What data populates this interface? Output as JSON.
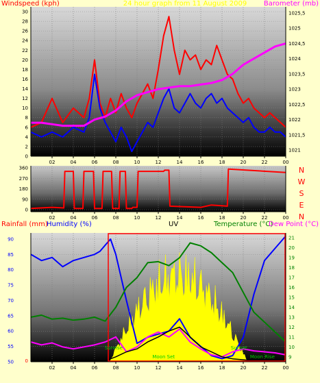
{
  "chart_data": [
    {
      "type": "line",
      "title": "24 hour graph from 11 August 2009",
      "left_label": "Windspeed (kph)",
      "right_label": "Barometer (mb)",
      "x_ticks": [
        "02",
        "04",
        "06",
        "08",
        "10",
        "12",
        "14",
        "16",
        "18",
        "20",
        "22",
        "00"
      ],
      "ylim_left": [
        0,
        31
      ],
      "y_ticks_left": [
        0,
        2,
        4,
        6,
        8,
        10,
        12,
        14,
        16,
        18,
        20,
        22,
        24,
        26,
        28,
        30
      ],
      "ylim_right": [
        1020.8,
        1025.7
      ],
      "y_ticks_right": [
        "1021",
        "1021,5",
        "1022",
        "1022,5",
        "1023",
        "1023,5",
        "1024",
        "1024,5",
        "1025",
        "1025,5"
      ],
      "series": [
        {
          "color": "#ff0000",
          "axis": "left",
          "x": [
            0,
            1,
            2,
            3,
            4,
            5,
            5.5,
            6,
            6.5,
            7,
            7.5,
            8,
            8.5,
            9,
            9.5,
            10,
            10.5,
            11,
            11.5,
            12,
            12.5,
            13,
            13.5,
            14,
            14.5,
            15,
            15.5,
            16,
            16.5,
            17,
            17.5,
            18,
            18.5,
            19,
            19.5,
            20,
            20.5,
            21,
            21.5,
            22,
            22.5,
            23,
            23.5,
            24
          ],
          "values": [
            6,
            7,
            12,
            7,
            10,
            8,
            12,
            20,
            11,
            8,
            12,
            9,
            13,
            10,
            8,
            11,
            13,
            15,
            12,
            18,
            25,
            29,
            22,
            17,
            22,
            20,
            21,
            18,
            20,
            19,
            23,
            20,
            17,
            16,
            13,
            11,
            12,
            10,
            9,
            8,
            9,
            8,
            7,
            6
          ]
        },
        {
          "color": "#0000ff",
          "axis": "left",
          "x": [
            0,
            1,
            2,
            3,
            4,
            5,
            5.5,
            6,
            6.5,
            7,
            7.5,
            8,
            8.5,
            9,
            9.5,
            10,
            10.5,
            11,
            11.5,
            12,
            12.5,
            13,
            13.5,
            14,
            14.5,
            15,
            15.5,
            16,
            16.5,
            17,
            17.5,
            18,
            18.5,
            19,
            19.5,
            20,
            20.5,
            21,
            21.5,
            22,
            22.5,
            23,
            23.5,
            24
          ],
          "values": [
            5,
            4,
            5,
            4,
            6,
            5,
            8,
            17,
            10,
            7,
            5,
            3,
            6,
            4,
            1,
            3,
            5,
            7,
            6,
            9,
            12,
            14,
            10,
            9,
            11,
            13,
            11,
            10,
            12,
            13,
            11,
            12,
            10,
            9,
            8,
            7,
            8,
            6,
            5,
            5,
            6,
            5,
            5,
            4
          ]
        },
        {
          "color": "#ff00ff",
          "axis": "right",
          "x": [
            0,
            1,
            2,
            3,
            4,
            5,
            6,
            7,
            8,
            9,
            10,
            11,
            12,
            13,
            14,
            15,
            16,
            17,
            18,
            19,
            20,
            21,
            22,
            23,
            24
          ],
          "values": [
            1021.9,
            1021.9,
            1021.85,
            1021.8,
            1021.8,
            1021.8,
            1022.0,
            1022.1,
            1022.3,
            1022.6,
            1022.8,
            1022.9,
            1023.0,
            1023.05,
            1023.1,
            1023.1,
            1023.15,
            1023.2,
            1023.3,
            1023.5,
            1023.8,
            1024.0,
            1024.2,
            1024.4,
            1024.5
          ]
        }
      ]
    },
    {
      "type": "line",
      "right_labels": [
        "N",
        "W",
        "S",
        "E",
        "N"
      ],
      "ylim": [
        0,
        360
      ],
      "y_ticks": [
        0,
        90,
        180,
        270,
        360
      ],
      "x_ticks": [
        "02",
        "04",
        "06",
        "08",
        "10",
        "12",
        "14",
        "16",
        "18",
        "20",
        "22",
        "00"
      ],
      "series": [
        {
          "color": "#ff0000",
          "x": [
            0,
            2,
            3.1,
            3.2,
            4,
            4.1,
            4.9,
            5.0,
            5.9,
            6.0,
            6.7,
            6.8,
            7.6,
            7.7,
            8.3,
            8.4,
            8.9,
            9.0,
            9.5,
            9.6,
            10.0,
            10.1,
            12.5,
            12.6,
            13.0,
            13.1,
            16.0,
            17.0,
            18.5,
            18.6,
            24
          ],
          "values": [
            10,
            20,
            15,
            330,
            330,
            10,
            10,
            330,
            330,
            10,
            10,
            330,
            330,
            10,
            10,
            330,
            330,
            10,
            10,
            20,
            20,
            330,
            330,
            340,
            340,
            30,
            20,
            40,
            30,
            350,
            320
          ]
        }
      ]
    },
    {
      "type": "line",
      "labels": {
        "rainfall": "Rainfall (mm)",
        "humidity": "Humidity (%)",
        "uv": "UV",
        "temperature": "Temperature (°C)",
        "dew_point": "Dew Point (°C)"
      },
      "annotations": [
        "Sunrise",
        "Moon Set",
        "Sunset",
        "Moon Rise"
      ],
      "ylim_left": [
        50,
        92
      ],
      "y_ticks_left": [
        50,
        55,
        60,
        65,
        70,
        75,
        80,
        85,
        90
      ],
      "y_ticks_left_rain": [
        0
      ],
      "ylim_right": [
        8.5,
        21.5
      ],
      "y_ticks_right": [
        9,
        10,
        11,
        12,
        13,
        14,
        15,
        16,
        17,
        18,
        19,
        20,
        21
      ],
      "x_ticks": [
        "02",
        "04",
        "06",
        "08",
        "10",
        "12",
        "14",
        "16",
        "18",
        "20",
        "22",
        "00"
      ],
      "series": [
        {
          "name": "Humidity (%)",
          "color": "#0000ff",
          "axis": "left",
          "x": [
            0,
            1,
            2,
            3,
            4,
            5,
            6,
            6.5,
            7,
            7.5,
            8,
            9,
            10,
            11,
            12,
            13,
            14,
            15,
            16,
            17,
            18,
            19,
            20,
            21,
            22,
            23,
            24
          ],
          "values": [
            85,
            83,
            84,
            81,
            83,
            84,
            85,
            86,
            88,
            90,
            85,
            70,
            56,
            58,
            59,
            60,
            64,
            58,
            55,
            52,
            51,
            52,
            58,
            72,
            83,
            87,
            91
          ]
        },
        {
          "name": "Temperature (°C)",
          "color": "#008000",
          "axis": "right",
          "x": [
            0,
            1,
            2,
            3,
            4,
            5,
            6,
            7,
            8,
            9,
            10,
            11,
            12,
            13,
            14,
            15,
            16,
            17,
            18,
            19,
            20,
            21,
            22,
            23,
            24
          ],
          "values": [
            13,
            13.2,
            12.8,
            12.9,
            12.7,
            12.8,
            13,
            12.6,
            14,
            16,
            17,
            18.5,
            18.6,
            18.2,
            19,
            20.5,
            20.2,
            19.5,
            18.5,
            17.5,
            15.5,
            13.5,
            12.5,
            11.5,
            10.5
          ]
        },
        {
          "name": "Dew Point (°C)",
          "color": "#ff00ff",
          "axis": "right",
          "x": [
            0,
            1,
            2,
            3,
            4,
            5,
            6,
            7,
            8,
            9,
            10,
            11,
            12,
            13,
            14,
            15,
            16,
            17,
            18,
            19,
            20,
            21,
            22,
            23,
            24
          ],
          "values": [
            10.5,
            10.2,
            10.4,
            10,
            9.8,
            10,
            10.2,
            10.5,
            11,
            9.5,
            10,
            11,
            11.5,
            11,
            11.8,
            10.5,
            9.8,
            9.2,
            9.0,
            9.5,
            9.8,
            9.6,
            9.5,
            9.4,
            9.2
          ]
        },
        {
          "name": "UV",
          "color": "#000000",
          "axis": "right",
          "x": [
            0,
            7,
            8,
            9,
            10,
            11,
            12,
            13,
            14,
            15,
            16,
            17,
            18,
            19,
            20,
            21,
            24
          ],
          "values": [
            8.6,
            8.6,
            9,
            9.5,
            9.8,
            10.5,
            11,
            11.6,
            12,
            11,
            10,
            9.5,
            9,
            8.8,
            8.7,
            8.6,
            8.6
          ]
        }
      ]
    }
  ]
}
